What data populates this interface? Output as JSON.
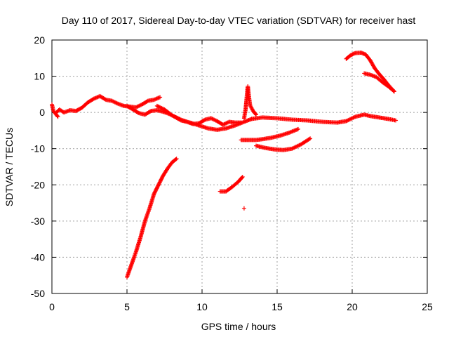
{
  "chart_data": {
    "type": "scatter",
    "title": "Day 110 of 2017, Sidereal Day-to-day VTEC variation (SDTVAR) for receiver hast",
    "xlabel": "GPS time / hours",
    "ylabel": "SDTVAR / TECUs",
    "xlim": [
      0,
      25
    ],
    "ylim": [
      -50,
      20
    ],
    "xticks": [
      0,
      5,
      10,
      15,
      20,
      25
    ],
    "yticks": [
      -50,
      -40,
      -30,
      -20,
      -10,
      0,
      10,
      20
    ],
    "grid": true,
    "legend": "none",
    "marker": "+",
    "colors": {
      "points": "#ff0000",
      "grid": "#a0a0a0",
      "axis": "#000000"
    },
    "series": [
      {
        "name": "track-main-0-7h",
        "points": [
          [
            0.3,
            0
          ],
          [
            0.5,
            0.8
          ],
          [
            0.8,
            0
          ],
          [
            1.2,
            0.6
          ],
          [
            1.6,
            0.4
          ],
          [
            2.0,
            1.3
          ],
          [
            2.4,
            2.8
          ],
          [
            2.8,
            3.8
          ],
          [
            3.2,
            4.5
          ],
          [
            3.6,
            3.5
          ],
          [
            4.0,
            3.2
          ],
          [
            4.4,
            2.4
          ],
          [
            4.8,
            1.8
          ],
          [
            5.2,
            1.6
          ],
          [
            5.6,
            1.4
          ],
          [
            6.0,
            2.2
          ],
          [
            6.4,
            3.2
          ],
          [
            6.8,
            3.5
          ],
          [
            7.2,
            4.2
          ]
        ]
      },
      {
        "name": "track-start-points",
        "points": [
          [
            0.0,
            2.2
          ],
          [
            0.1,
            0.4
          ],
          [
            0.4,
            -1.2
          ]
        ]
      },
      {
        "name": "track-dip-5-10h",
        "points": [
          [
            5.0,
            1.8
          ],
          [
            5.4,
            0.8
          ],
          [
            5.8,
            -0.2
          ],
          [
            6.2,
            -0.6
          ],
          [
            6.6,
            0.4
          ],
          [
            7.0,
            0.6
          ],
          [
            7.4,
            0.2
          ],
          [
            7.8,
            -0.4
          ],
          [
            8.2,
            -1.2
          ],
          [
            8.6,
            -2.0
          ],
          [
            9.0,
            -2.6
          ],
          [
            9.4,
            -3.2
          ],
          [
            9.8,
            -3.0
          ],
          [
            10.2,
            -2.0
          ],
          [
            10.6,
            -1.6
          ],
          [
            11.0,
            -2.4
          ],
          [
            11.4,
            -3.4
          ],
          [
            11.8,
            -2.6
          ],
          [
            12.2,
            -2.8
          ],
          [
            12.6,
            -2.8
          ]
        ]
      },
      {
        "name": "track-low-8-12h",
        "points": [
          [
            7.0,
            1.8
          ],
          [
            7.5,
            0.8
          ],
          [
            8.0,
            -0.8
          ],
          [
            8.6,
            -2.2
          ],
          [
            9.2,
            -2.8
          ],
          [
            9.8,
            -3.6
          ],
          [
            10.4,
            -4.4
          ],
          [
            11.0,
            -4.8
          ],
          [
            11.6,
            -4.4
          ],
          [
            12.2,
            -3.6
          ],
          [
            12.8,
            -2.6
          ],
          [
            13.3,
            -1.8
          ]
        ]
      },
      {
        "name": "track-13-23h",
        "points": [
          [
            13.3,
            -1.8
          ],
          [
            14.0,
            -1.4
          ],
          [
            15.0,
            -1.6
          ],
          [
            16.0,
            -2.0
          ],
          [
            17.0,
            -2.2
          ],
          [
            18.0,
            -2.6
          ],
          [
            19.0,
            -2.8
          ],
          [
            19.6,
            -2.4
          ],
          [
            20.2,
            -1.2
          ],
          [
            20.8,
            -0.6
          ],
          [
            21.2,
            -1.0
          ],
          [
            21.8,
            -1.4
          ],
          [
            22.4,
            -1.8
          ],
          [
            22.9,
            -2.2
          ]
        ]
      },
      {
        "name": "track-spike-13h",
        "points": [
          [
            12.8,
            -1.6
          ],
          [
            12.9,
            0.8
          ],
          [
            12.95,
            3.0
          ],
          [
            13.0,
            5.4
          ],
          [
            13.05,
            7.2
          ],
          [
            13.1,
            5.0
          ],
          [
            13.2,
            2.0
          ],
          [
            13.4,
            0.4
          ],
          [
            13.6,
            -0.6
          ]
        ]
      },
      {
        "name": "track-hump-20h",
        "points": [
          [
            19.6,
            14.8
          ],
          [
            19.9,
            15.8
          ],
          [
            20.2,
            16.4
          ],
          [
            20.6,
            16.5
          ],
          [
            20.9,
            16.0
          ],
          [
            21.2,
            14.4
          ],
          [
            21.5,
            12.2
          ],
          [
            21.8,
            10.6
          ],
          [
            22.1,
            9.2
          ],
          [
            22.4,
            7.6
          ],
          [
            22.8,
            5.8
          ]
        ]
      },
      {
        "name": "track-branch-21h",
        "points": [
          [
            20.8,
            10.8
          ],
          [
            21.2,
            10.4
          ],
          [
            21.6,
            9.8
          ],
          [
            22.0,
            8.4
          ],
          [
            22.4,
            7.2
          ],
          [
            22.8,
            5.8
          ]
        ]
      },
      {
        "name": "track-lower-arc",
        "points": [
          [
            12.6,
            -7.6
          ],
          [
            13.0,
            -7.6
          ],
          [
            13.6,
            -7.6
          ],
          [
            14.0,
            -7.4
          ],
          [
            14.6,
            -7.0
          ],
          [
            15.2,
            -6.4
          ],
          [
            15.8,
            -5.6
          ],
          [
            16.4,
            -4.6
          ]
        ]
      },
      {
        "name": "track-lower-curve",
        "points": [
          [
            13.6,
            -9.2
          ],
          [
            14.2,
            -9.8
          ],
          [
            14.8,
            -10.2
          ],
          [
            15.4,
            -10.4
          ],
          [
            16.0,
            -10.0
          ],
          [
            16.6,
            -8.8
          ],
          [
            17.2,
            -7.2
          ]
        ]
      },
      {
        "name": "track-steep-rise",
        "points": [
          [
            5.0,
            -45.5
          ],
          [
            5.3,
            -42.0
          ],
          [
            5.6,
            -38.5
          ],
          [
            5.9,
            -34.5
          ],
          [
            6.2,
            -30.0
          ],
          [
            6.5,
            -26.5
          ],
          [
            6.8,
            -22.5
          ],
          [
            7.1,
            -20.0
          ],
          [
            7.4,
            -17.5
          ],
          [
            7.7,
            -15.5
          ],
          [
            8.0,
            -13.8
          ],
          [
            8.3,
            -12.8
          ]
        ]
      },
      {
        "name": "track-short-segment",
        "points": [
          [
            11.2,
            -21.8
          ],
          [
            11.6,
            -21.8
          ],
          [
            12.0,
            -20.6
          ],
          [
            12.4,
            -19.2
          ],
          [
            12.7,
            -17.8
          ]
        ]
      },
      {
        "name": "isolated-point",
        "points": [
          [
            12.8,
            -26.5
          ]
        ]
      }
    ]
  }
}
